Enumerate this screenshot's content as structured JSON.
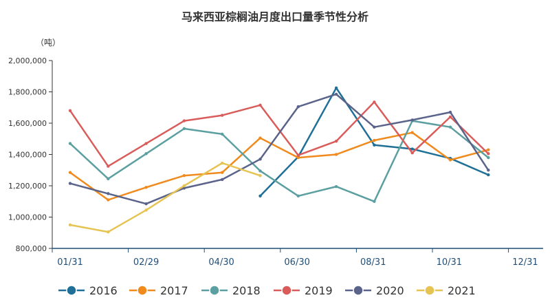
{
  "chart_data": {
    "type": "line",
    "title": "马来西亚棕榈油月度出口量季节性分析",
    "ylabel": "（吨）",
    "xlabel": "",
    "ylim": [
      800000,
      2000000
    ],
    "yticks": [
      800000,
      1000000,
      1200000,
      1400000,
      1600000,
      1800000,
      2000000
    ],
    "ytick_labels": [
      "800,000",
      "1,000,000",
      "1,200,000",
      "1,400,000",
      "1,600,000",
      "1,800,000",
      "2,000,000"
    ],
    "x": [
      "01/31",
      "02/28",
      "03/31",
      "04/30",
      "05/31",
      "06/30",
      "07/31",
      "08/31",
      "09/30",
      "10/31",
      "11/30",
      "12/31"
    ],
    "xtick_labels": [
      "01/31",
      "02/29",
      "04/30",
      "06/30",
      "08/31",
      "10/31",
      "12/31"
    ],
    "xtick_positions": [
      0,
      2,
      3.98,
      5.97,
      7.97,
      9.97,
      11.97
    ],
    "legend_position": "bottom",
    "grid": false,
    "series": [
      {
        "name": "2016",
        "color": "#1f6f97",
        "values": [
          null,
          null,
          null,
          null,
          null,
          1135000,
          1385000,
          1825000,
          1460000,
          1435000,
          1375000,
          1270000
        ]
      },
      {
        "name": "2017",
        "color": "#f08a1c",
        "values": [
          1285000,
          1110000,
          1190000,
          1265000,
          1285000,
          1505000,
          1380000,
          1400000,
          1490000,
          1540000,
          1365000,
          1430000
        ]
      },
      {
        "name": "2018",
        "color": "#5b9fa0",
        "values": [
          1470000,
          1245000,
          1405000,
          1565000,
          1530000,
          1295000,
          1135000,
          1195000,
          1100000,
          1615000,
          1575000,
          1380000
        ]
      },
      {
        "name": "2019",
        "color": "#d95c5a",
        "values": [
          1680000,
          1325000,
          1470000,
          1615000,
          1650000,
          1715000,
          1395000,
          1485000,
          1735000,
          1410000,
          1640000,
          1405000
        ]
      },
      {
        "name": "2020",
        "color": "#5a6389",
        "values": [
          1215000,
          1150000,
          1085000,
          1185000,
          1240000,
          1370000,
          1705000,
          1785000,
          1575000,
          1620000,
          1670000,
          1300000
        ]
      },
      {
        "name": "2021",
        "color": "#e6c453",
        "values": [
          950000,
          905000,
          1045000,
          1200000,
          1345000,
          1265000,
          null,
          null,
          null,
          null,
          null,
          null
        ]
      }
    ]
  }
}
